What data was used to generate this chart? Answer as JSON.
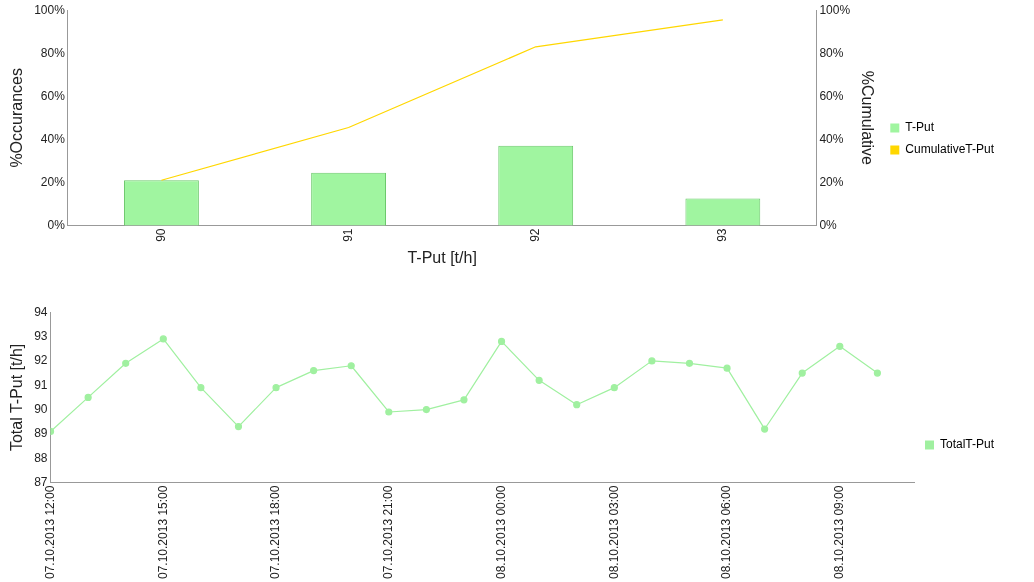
{
  "chart_data": [
    {
      "type": "bar",
      "xlabel": "T-Put [t/h]",
      "ylabel": "%Occurances",
      "y2label": "%Cumulative",
      "categories": [
        "90",
        "91",
        "92",
        "93"
      ],
      "series": [
        {
          "name": "T-Put",
          "type": "bar",
          "color": "#a0f5a0",
          "values": [
            21,
            24.5,
            37,
            12.5
          ]
        },
        {
          "name": "CumulativeT-Put",
          "type": "line",
          "axis": "y2",
          "color": "#ffd700",
          "values": [
            21,
            45.5,
            83,
            95.5
          ]
        }
      ],
      "ylim": [
        0,
        100
      ],
      "yticks": [
        {
          "value": 0,
          "label": "0%"
        },
        {
          "value": 20,
          "label": "20%"
        },
        {
          "value": 40,
          "label": "40%"
        },
        {
          "value": 60,
          "label": "60%"
        },
        {
          "value": 80,
          "label": "80%"
        },
        {
          "value": 100,
          "label": "100%"
        }
      ],
      "y2lim": [
        0,
        100
      ],
      "y2ticks": [
        {
          "value": 0,
          "label": "0%"
        },
        {
          "value": 20,
          "label": "20%"
        },
        {
          "value": 40,
          "label": "40%"
        },
        {
          "value": 60,
          "label": "60%"
        },
        {
          "value": 80,
          "label": "80%"
        },
        {
          "value": 100,
          "label": "100%"
        }
      ],
      "grid": false,
      "legend": "right",
      "marker": "none"
    },
    {
      "type": "line",
      "ylabel": "Total T-Put [t/h]",
      "x": [
        "2013-10-07T12:00",
        "2013-10-07T13:00",
        "2013-10-07T14:00",
        "2013-10-07T15:00",
        "2013-10-07T16:00",
        "2013-10-07T17:00",
        "2013-10-07T18:00",
        "2013-10-07T19:00",
        "2013-10-07T20:00",
        "2013-10-07T21:00",
        "2013-10-07T22:00",
        "2013-10-07T23:00",
        "2013-10-08T00:00",
        "2013-10-08T01:00",
        "2013-10-08T02:00",
        "2013-10-08T03:00",
        "2013-10-08T04:00",
        "2013-10-08T05:00",
        "2013-10-08T06:00",
        "2013-10-08T07:00",
        "2013-10-08T08:00",
        "2013-10-08T09:00",
        "2013-10-08T10:00"
      ],
      "series": [
        {
          "name": "TotalT-Put",
          "color": "#a0f0a0",
          "values": [
            89.1,
            90.5,
            91.9,
            92.9,
            90.9,
            89.3,
            90.9,
            91.6,
            91.8,
            89.9,
            90,
            90.4,
            92.8,
            91.2,
            90.2,
            90.9,
            92,
            91.9,
            91.7,
            89.2,
            91.5,
            92.6,
            91.5
          ]
        }
      ],
      "xlim": [
        "2013-10-07T12:00",
        "2013-10-08T11:00"
      ],
      "xticks": [
        {
          "value": "2013-10-07T12:00",
          "label": "07.10.2013 12:00"
        },
        {
          "value": "2013-10-07T15:00",
          "label": "07.10.2013 15:00"
        },
        {
          "value": "2013-10-07T18:00",
          "label": "07.10.2013 18:00"
        },
        {
          "value": "2013-10-07T21:00",
          "label": "07.10.2013 21:00"
        },
        {
          "value": "2013-10-08T00:00",
          "label": "08.10.2013 00:00"
        },
        {
          "value": "2013-10-08T03:00",
          "label": "08.10.2013 03:00"
        },
        {
          "value": "2013-10-08T06:00",
          "label": "08.10.2013 06:00"
        },
        {
          "value": "2013-10-08T09:00",
          "label": "08.10.2013 09:00"
        }
      ],
      "ylim": [
        87,
        94
      ],
      "yticks": [
        87,
        88,
        89,
        90,
        91,
        92,
        93,
        94
      ],
      "grid": false,
      "legend": "right",
      "marker": "circle"
    }
  ]
}
